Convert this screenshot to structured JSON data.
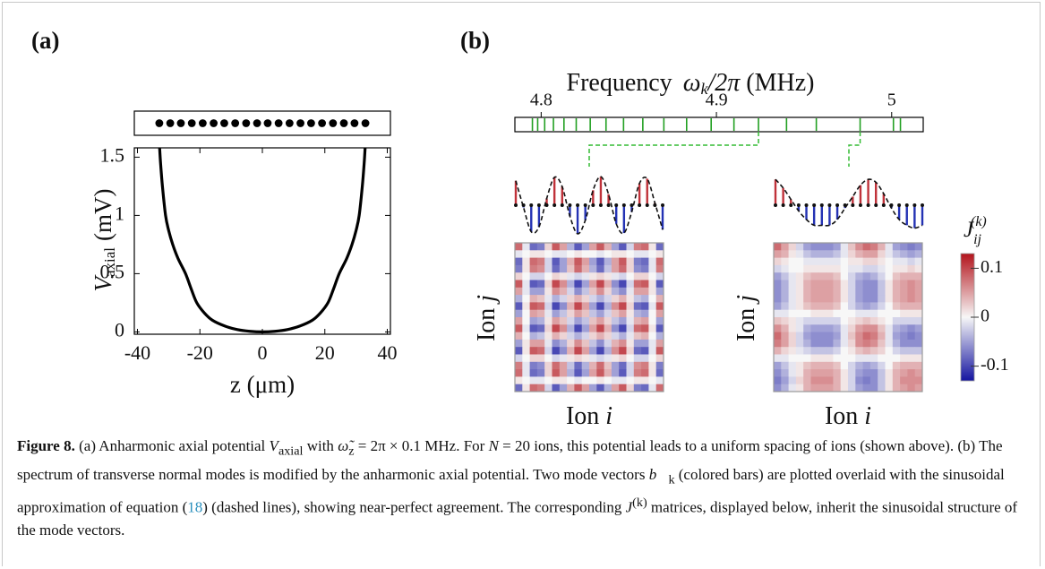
{
  "figure": {
    "panel_a_label": "(a)",
    "panel_b_label": "(b)"
  },
  "chart_data": [
    {
      "type": "strip",
      "x": [
        -33,
        -29.5,
        -26.1,
        -22.6,
        -19.1,
        -15.6,
        -12.2,
        -8.7,
        -5.2,
        -1.7,
        1.7,
        5.2,
        8.7,
        12.2,
        15.6,
        19.1,
        22.6,
        26.1,
        29.5,
        33
      ],
      "xlim": [
        -41,
        41
      ],
      "color": "#000000"
    },
    {
      "type": "line",
      "x": [
        -32.9,
        -32.6,
        -32,
        -31,
        -30,
        -28.7,
        -27,
        -24.6,
        -22.8,
        -21,
        -18.5,
        -16,
        -12,
        -8,
        -4,
        0,
        4,
        8,
        12,
        16,
        18.5,
        21,
        22.8,
        24.6,
        27,
        28.7,
        30,
        31,
        32,
        32.6,
        32.9
      ],
      "y": [
        1.58,
        1.45,
        1.25,
        1,
        0.87,
        0.75,
        0.63,
        0.5,
        0.37,
        0.25,
        0.16,
        0.1,
        0.05,
        0.02,
        0.005,
        0,
        0.005,
        0.02,
        0.05,
        0.1,
        0.16,
        0.25,
        0.37,
        0.5,
        0.63,
        0.75,
        0.87,
        1,
        1.25,
        1.45,
        1.58
      ],
      "xlim": [
        -41,
        41
      ],
      "ylim": [
        -0.02,
        1.58
      ],
      "xticks": [
        -40,
        -20,
        0,
        20,
        40
      ],
      "yticks": [
        0,
        0.5,
        1,
        1.5
      ],
      "xlabel": "z (μm)",
      "ylabel": {
        "symbol": "V",
        "subscript": "axial",
        "unit": "(mV)"
      },
      "color": "#000000"
    },
    {
      "type": "spectrum",
      "title": {
        "text": "Frequency",
        "symbol": "ω",
        "subscript": "k",
        "rest": "/2π",
        "unit": "(MHz)"
      },
      "x": [
        4.795,
        4.798,
        4.802,
        4.807,
        4.813,
        4.82,
        4.828,
        4.837,
        4.847,
        4.858,
        4.87,
        4.883,
        4.897,
        4.91,
        4.924,
        4.94,
        4.957,
        4.982,
        5.001,
        5.005
      ],
      "xlim": [
        4.785,
        5.018
      ],
      "xticks": [
        4.8,
        4.9,
        5
      ],
      "color": "#22a022"
    },
    {
      "type": "stem",
      "frequency": 4.924,
      "values": [
        0.853,
        -0.078,
        -0.924,
        -0.76,
        0.233,
        0.972,
        0.649,
        -0.383,
        -0.997,
        -0.522,
        0.522,
        0.997,
        0.383,
        -0.649,
        -0.972,
        -0.233,
        0.76,
        0.924,
        0.078,
        -0.853
      ],
      "ylim": [
        -1,
        1
      ],
      "positive_color": "#c0323a",
      "negative_color": "#2432b4"
    },
    {
      "type": "stem",
      "frequency": 4.982,
      "values": [
        0.9,
        0.6,
        0.2,
        -0.2,
        -0.5,
        -0.7,
        -0.7,
        -0.7,
        -0.5,
        -0.1,
        0.3,
        0.7,
        0.9,
        0.8,
        0.4,
        -0.1,
        -0.5,
        -0.7,
        -0.8,
        -0.7
      ],
      "ylim": [
        -1,
        1
      ],
      "positive_color": "#c0323a",
      "negative_color": "#2432b4"
    },
    {
      "type": "heatmap",
      "xlabel": {
        "text": "Ion",
        "symbol": "i"
      },
      "ylabel": {
        "text": "Ion",
        "symbol": "j"
      },
      "values": [
        [
          0.08,
          -0.01,
          -0.08,
          -0.07,
          0.02,
          0.09,
          0.05,
          -0.04,
          -0.09,
          -0.05,
          0.05,
          0.09,
          0.04,
          -0.05,
          -0.09,
          -0.02,
          0.07,
          0.08,
          0.01,
          -0.08
        ],
        [
          -0.01,
          0,
          0.01,
          0.01,
          0,
          -0.01,
          -0.01,
          0,
          0.01,
          0,
          0,
          -0.01,
          0,
          0.01,
          0.01,
          0,
          -0.01,
          -0.01,
          0,
          0.01
        ],
        [
          -0.08,
          0.01,
          0.08,
          0.07,
          -0.02,
          -0.09,
          -0.05,
          0.04,
          0.09,
          0.05,
          -0.05,
          -0.09,
          -0.04,
          0.05,
          0.09,
          0.02,
          -0.07,
          -0.08,
          -0.01,
          0.08
        ],
        [
          -0.07,
          0.01,
          0.07,
          0.06,
          -0.02,
          -0.08,
          -0.05,
          0.03,
          0.08,
          0.04,
          -0.04,
          -0.08,
          -0.03,
          0.05,
          0.08,
          0.02,
          -0.06,
          -0.07,
          -0.01,
          0.07
        ],
        [
          0.02,
          0,
          -0.02,
          -0.02,
          0,
          0.02,
          0.01,
          -0.01,
          -0.02,
          -0.01,
          0.01,
          0.02,
          0.01,
          -0.01,
          -0.02,
          0,
          0.02,
          0.02,
          0,
          -0.02
        ],
        [
          0.09,
          -0.01,
          -0.09,
          -0.08,
          0.02,
          0.1,
          0.06,
          -0.04,
          -0.1,
          -0.05,
          0.05,
          0.1,
          0.04,
          -0.06,
          -0.1,
          -0.02,
          0.08,
          0.09,
          0.01,
          -0.09
        ],
        [
          0.05,
          -0.01,
          -0.05,
          -0.05,
          0.01,
          0.06,
          0.04,
          -0.02,
          -0.06,
          -0.03,
          0.03,
          0.06,
          0.02,
          -0.04,
          -0.06,
          -0.01,
          0.05,
          0.05,
          0.01,
          -0.05
        ],
        [
          -0.04,
          0,
          0.04,
          0.03,
          -0.01,
          -0.04,
          -0.02,
          0.02,
          0.04,
          0.02,
          -0.02,
          -0.04,
          -0.02,
          0.02,
          0.04,
          0.01,
          -0.03,
          -0.04,
          0,
          0.04
        ],
        [
          -0.09,
          0.01,
          0.09,
          0.08,
          -0.02,
          -0.1,
          -0.06,
          0.04,
          0.1,
          0.05,
          -0.05,
          -0.1,
          -0.04,
          0.06,
          0.1,
          0.02,
          -0.08,
          -0.09,
          -0.01,
          0.09
        ],
        [
          -0.05,
          0,
          0.05,
          0.04,
          -0.01,
          -0.05,
          -0.03,
          0.02,
          0.05,
          0.03,
          -0.03,
          -0.05,
          -0.02,
          0.03,
          0.05,
          0.01,
          -0.04,
          -0.05,
          0,
          0.05
        ],
        [
          0.05,
          0,
          -0.05,
          -0.04,
          0.01,
          0.05,
          0.03,
          -0.02,
          -0.05,
          -0.03,
          0.03,
          0.05,
          0.02,
          -0.03,
          -0.05,
          -0.01,
          0.04,
          0.05,
          0,
          -0.05
        ],
        [
          0.09,
          -0.01,
          -0.09,
          -0.08,
          0.02,
          0.1,
          0.06,
          -0.04,
          -0.1,
          -0.05,
          0.05,
          0.1,
          0.04,
          -0.06,
          -0.1,
          -0.02,
          0.08,
          0.09,
          0.01,
          -0.09
        ],
        [
          0.04,
          0,
          -0.04,
          -0.03,
          0.01,
          0.04,
          0.02,
          -0.02,
          -0.04,
          -0.02,
          0.02,
          0.04,
          0.02,
          -0.02,
          -0.04,
          -0.01,
          0.03,
          0.04,
          0,
          -0.04
        ],
        [
          -0.05,
          0.01,
          0.05,
          0.05,
          -0.01,
          -0.06,
          -0.04,
          0.02,
          0.06,
          0.03,
          -0.03,
          -0.06,
          -0.02,
          0.04,
          0.06,
          0.01,
          -0.05,
          -0.05,
          -0.01,
          0.05
        ],
        [
          -0.09,
          0.01,
          0.09,
          0.08,
          -0.02,
          -0.1,
          -0.06,
          0.04,
          0.1,
          0.05,
          -0.05,
          -0.1,
          -0.04,
          0.06,
          0.1,
          0.02,
          -0.08,
          -0.09,
          -0.01,
          0.09
        ],
        [
          -0.02,
          0,
          0.02,
          0.02,
          0,
          -0.02,
          -0.01,
          0.01,
          0.02,
          0.01,
          -0.01,
          -0.02,
          -0.01,
          0.01,
          0.02,
          0,
          -0.02,
          -0.02,
          0,
          0.02
        ],
        [
          0.07,
          -0.01,
          -0.07,
          -0.06,
          0.02,
          0.08,
          0.05,
          -0.03,
          -0.08,
          -0.04,
          0.04,
          0.08,
          0.03,
          -0.05,
          -0.08,
          -0.02,
          0.06,
          0.07,
          0.01,
          -0.07
        ],
        [
          0.08,
          -0.01,
          -0.08,
          -0.07,
          0.02,
          0.09,
          0.05,
          -0.04,
          -0.09,
          -0.05,
          0.05,
          0.09,
          0.04,
          -0.05,
          -0.09,
          -0.02,
          0.07,
          0.08,
          0.01,
          -0.08
        ],
        [
          0.01,
          0,
          -0.01,
          -0.01,
          0,
          0.01,
          0.01,
          0,
          -0.01,
          0,
          0,
          0.01,
          0,
          -0.01,
          -0.01,
          0,
          0.01,
          0.01,
          0,
          -0.01
        ],
        [
          -0.08,
          0.01,
          0.08,
          0.07,
          -0.02,
          -0.09,
          -0.05,
          0.04,
          0.09,
          0.05,
          -0.05,
          -0.09,
          -0.04,
          0.05,
          0.09,
          0.02,
          -0.07,
          -0.08,
          -0.01,
          0.08
        ]
      ]
    },
    {
      "type": "heatmap",
      "xlabel": {
        "text": "Ion",
        "symbol": "i"
      },
      "ylabel": {
        "text": "Ion",
        "symbol": "j"
      },
      "values": [
        [
          0.08,
          0.05,
          0.02,
          -0.02,
          -0.05,
          -0.06,
          -0.06,
          -0.06,
          -0.05,
          -0.01,
          0.03,
          0.06,
          0.08,
          0.07,
          0.04,
          -0.01,
          -0.05,
          -0.06,
          -0.07,
          -0.06
        ],
        [
          0.05,
          0.04,
          0.01,
          -0.01,
          -0.03,
          -0.04,
          -0.04,
          -0.04,
          -0.03,
          -0.01,
          0.02,
          0.04,
          0.05,
          0.05,
          0.02,
          -0.01,
          -0.03,
          -0.04,
          -0.05,
          -0.04
        ],
        [
          0.02,
          0.01,
          0,
          0,
          -0.01,
          -0.01,
          -0.01,
          -0.01,
          -0.01,
          0,
          0.01,
          0.01,
          0.02,
          0.02,
          0.01,
          0,
          -0.01,
          -0.01,
          -0.02,
          -0.01
        ],
        [
          -0.02,
          -0.01,
          0,
          0,
          0.01,
          0.01,
          0.01,
          0.01,
          0.01,
          0,
          -0.01,
          -0.01,
          -0.02,
          -0.02,
          -0.01,
          0,
          0.01,
          0.01,
          0.02,
          0.01
        ],
        [
          -0.05,
          -0.03,
          -0.01,
          0.01,
          0.03,
          0.04,
          0.04,
          0.04,
          0.03,
          0,
          -0.02,
          -0.04,
          -0.05,
          -0.04,
          -0.02,
          0,
          0.03,
          0.04,
          0.04,
          0.04
        ],
        [
          -0.06,
          -0.04,
          -0.01,
          0.01,
          0.04,
          0.05,
          0.05,
          0.05,
          0.04,
          0.01,
          -0.02,
          -0.05,
          -0.06,
          -0.06,
          -0.03,
          0.01,
          0.04,
          0.05,
          0.06,
          0.05
        ],
        [
          -0.06,
          -0.04,
          -0.01,
          0.01,
          0.04,
          0.05,
          0.05,
          0.05,
          0.04,
          0.01,
          -0.02,
          -0.05,
          -0.06,
          -0.06,
          -0.03,
          0.01,
          0.04,
          0.05,
          0.06,
          0.05
        ],
        [
          -0.06,
          -0.04,
          -0.01,
          0.01,
          0.04,
          0.05,
          0.05,
          0.05,
          0.04,
          0.01,
          -0.02,
          -0.05,
          -0.06,
          -0.06,
          -0.03,
          0.01,
          0.04,
          0.05,
          0.06,
          0.05
        ],
        [
          -0.05,
          -0.03,
          -0.01,
          0.01,
          0.03,
          0.04,
          0.04,
          0.04,
          0.03,
          0,
          -0.02,
          -0.04,
          -0.05,
          -0.04,
          -0.02,
          0,
          0.03,
          0.04,
          0.04,
          0.04
        ],
        [
          -0.01,
          -0.01,
          0,
          0,
          0,
          0.01,
          0.01,
          0.01,
          0,
          0,
          0,
          -0.01,
          -0.01,
          -0.01,
          0,
          0,
          0,
          0.01,
          0.01,
          0.01
        ],
        [
          0.03,
          0.02,
          0.01,
          -0.01,
          -0.02,
          -0.02,
          -0.02,
          -0.02,
          -0.02,
          0,
          0.01,
          0.02,
          0.03,
          0.02,
          0.01,
          0,
          -0.02,
          -0.02,
          -0.02,
          -0.02
        ],
        [
          0.06,
          0.04,
          0.01,
          -0.01,
          -0.04,
          -0.05,
          -0.05,
          -0.05,
          -0.04,
          -0.01,
          0.02,
          0.05,
          0.06,
          0.06,
          0.03,
          -0.01,
          -0.04,
          -0.05,
          -0.06,
          -0.05
        ],
        [
          0.08,
          0.05,
          0.02,
          -0.02,
          -0.05,
          -0.06,
          -0.06,
          -0.06,
          -0.05,
          -0.01,
          0.03,
          0.06,
          0.08,
          0.07,
          0.04,
          -0.01,
          -0.05,
          -0.06,
          -0.07,
          -0.06
        ],
        [
          0.07,
          0.05,
          0.02,
          -0.02,
          -0.04,
          -0.06,
          -0.06,
          -0.06,
          -0.04,
          -0.01,
          0.02,
          0.06,
          0.07,
          0.06,
          0.03,
          -0.01,
          -0.04,
          -0.06,
          -0.06,
          -0.06
        ],
        [
          0.04,
          0.02,
          0.01,
          -0.01,
          -0.02,
          -0.03,
          -0.03,
          -0.03,
          -0.02,
          0,
          0.01,
          0.03,
          0.04,
          0.03,
          0.02,
          0,
          -0.02,
          -0.03,
          -0.03,
          -0.03
        ],
        [
          -0.01,
          -0.01,
          0,
          0,
          0,
          0.01,
          0.01,
          0.01,
          0,
          0,
          0,
          -0.01,
          -0.01,
          -0.01,
          0,
          0,
          0,
          0.01,
          0.01,
          0.01
        ],
        [
          -0.05,
          -0.03,
          -0.01,
          0.01,
          0.03,
          0.04,
          0.04,
          0.04,
          0.03,
          0,
          -0.02,
          -0.04,
          -0.05,
          -0.04,
          -0.02,
          0,
          0.03,
          0.04,
          0.04,
          0.04
        ],
        [
          -0.06,
          -0.04,
          -0.01,
          0.01,
          0.04,
          0.05,
          0.05,
          0.05,
          0.04,
          0.01,
          -0.02,
          -0.05,
          -0.06,
          -0.06,
          -0.03,
          0.01,
          0.04,
          0.05,
          0.06,
          0.05
        ],
        [
          -0.07,
          -0.05,
          -0.02,
          0.02,
          0.04,
          0.06,
          0.06,
          0.06,
          0.04,
          0.01,
          -0.02,
          -0.06,
          -0.07,
          -0.06,
          -0.03,
          0.01,
          0.04,
          0.06,
          0.06,
          0.06
        ],
        [
          -0.06,
          -0.04,
          -0.01,
          0.01,
          0.04,
          0.05,
          0.05,
          0.05,
          0.04,
          0.01,
          -0.02,
          -0.05,
          -0.06,
          -0.06,
          -0.03,
          0.01,
          0.04,
          0.05,
          0.06,
          0.05
        ]
      ]
    },
    {
      "type": "colorbar",
      "label": {
        "symbol": "J",
        "subscript": "ij",
        "superscript": "(k)"
      },
      "ylim": [
        -0.13,
        0.13
      ],
      "yticks": [
        -0.1,
        0,
        0.1
      ],
      "colors": {
        "negative": "#1414a0",
        "zero": "#f7f7f7",
        "positive": "#b3141c"
      }
    }
  ],
  "caption": {
    "parts": [
      "Figure 8.",
      " (a) Anharmonic axial potential ",
      "V",
      "axial",
      " with ",
      "ω̃",
      "z",
      " = 2π × 0.1 MHz. For ",
      "N",
      " = 20 ions, this potential leads to a uniform spacing of ions (shown above). (b) The spectrum of transverse normal modes is modified by the anharmonic axial potential. Two mode vectors ",
      "b⃗",
      "k",
      " (colored bars) are plotted overlaid with the sinusoidal approximation of equation (",
      "18",
      ") (dashed lines), showing near-perfect agreement. The corresponding ",
      "J",
      "(k)",
      " matrices, displayed below, inherit the sinusoidal structure of the mode vectors."
    ]
  }
}
